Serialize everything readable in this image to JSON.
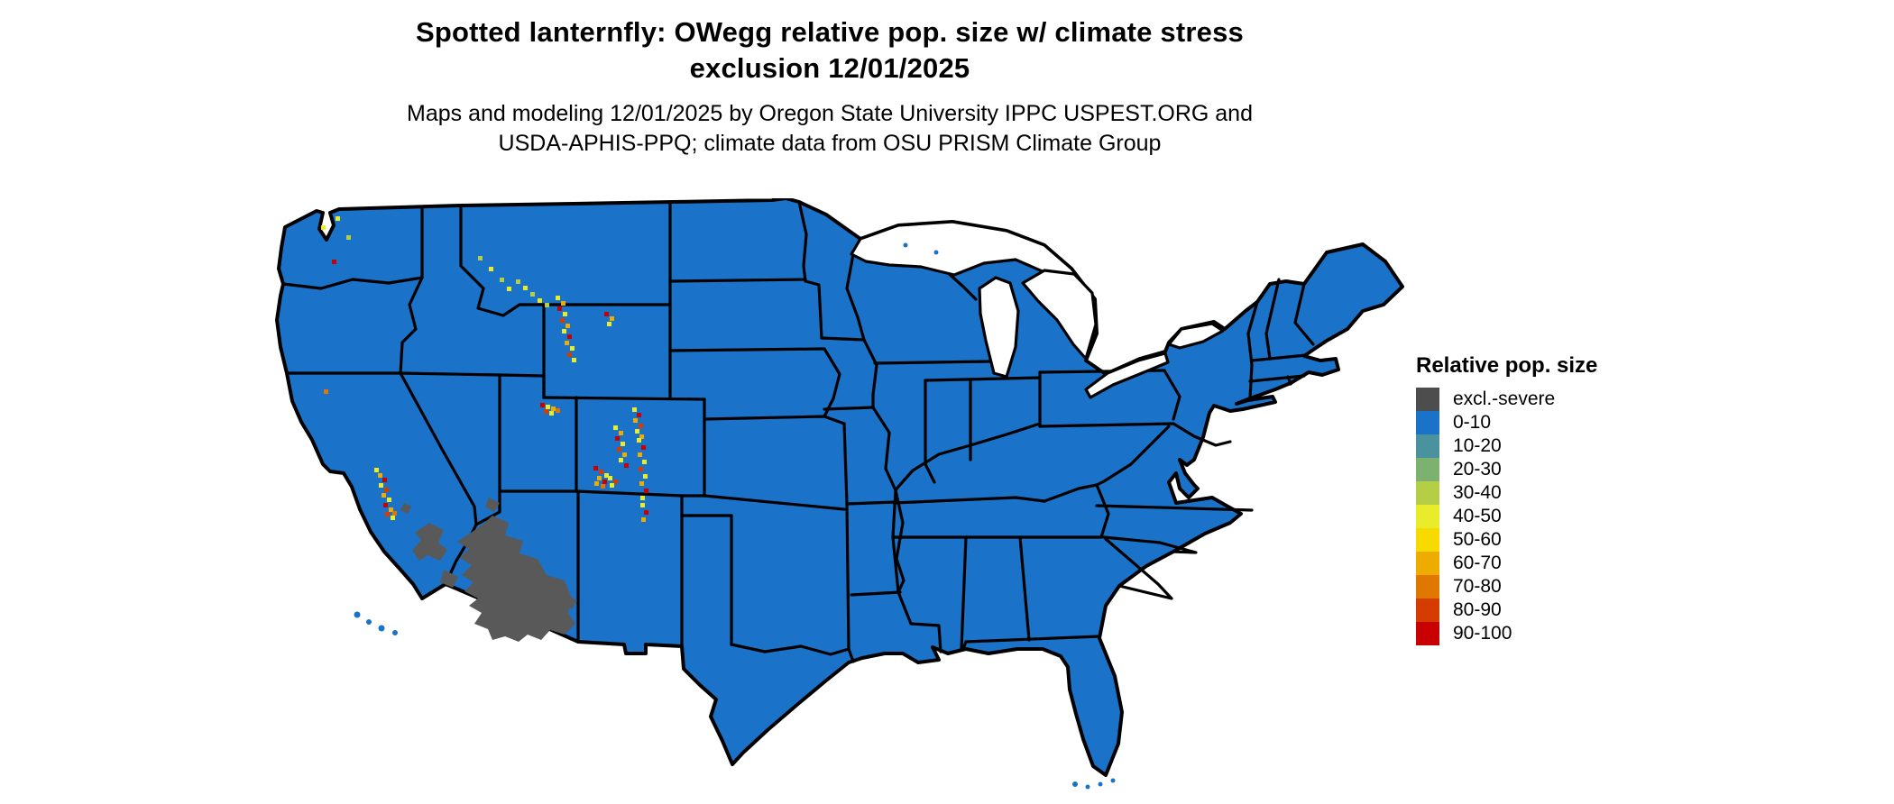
{
  "title": {
    "line1": "Spotted lanternfly: OWegg relative pop. size w/ climate stress",
    "line2": "exclusion 12/01/2025"
  },
  "subtitle": {
    "line1": "Maps and modeling 12/01/2025 by Oregon State University IPPC USPEST.ORG and",
    "line2": "USDA-APHIS-PPQ; climate data from OSU PRISM Climate Group"
  },
  "legend": {
    "title": "Relative pop. size",
    "items": [
      {
        "label": "excl.-severe",
        "color": "#4d4d4d"
      },
      {
        "label": "0-10",
        "color": "#1b72c9"
      },
      {
        "label": "10-20",
        "color": "#4a939e"
      },
      {
        "label": "20-30",
        "color": "#7cb170"
      },
      {
        "label": "30-40",
        "color": "#b4cf45"
      },
      {
        "label": "40-50",
        "color": "#e8ec2a"
      },
      {
        "label": "50-60",
        "color": "#f7da00"
      },
      {
        "label": "60-70",
        "color": "#eeab00"
      },
      {
        "label": "70-80",
        "color": "#e07800"
      },
      {
        "label": "80-90",
        "color": "#d43c00"
      },
      {
        "label": "90-100",
        "color": "#c90000"
      }
    ]
  },
  "map": {
    "description": "Contiguous United States choropleth grid",
    "background_color": "#ffffff",
    "border_color": "#000000",
    "lake_color": "#ffffff",
    "base_category": "0-10",
    "base_color": "#1b72c9",
    "exclusion_category": "excl.-severe",
    "exclusion_map_color": "#595959",
    "exclusion_regions": [
      {
        "name": "arizona-highlands"
      },
      {
        "name": "southeast-california-mountains"
      },
      {
        "name": "arizona-mexico-border-uplands"
      }
    ],
    "color_codes": {
      "LG": "#b4cf45",
      "Y": "#e8ec2a",
      "G": "#f7da00",
      "O": "#eeab00",
      "D": "#e07800",
      "R": "#d43c00",
      "K": "#c90000"
    },
    "hotspots": [
      {
        "name": "washington-cascades",
        "dots": [
          [
            72,
            68,
            "K"
          ],
          [
            76,
            20,
            "Y"
          ],
          [
            88,
            41,
            "LG"
          ],
          [
            60,
            30,
            "Y"
          ]
        ]
      },
      {
        "name": "northern-california",
        "dots": [
          [
            63,
            212,
            "D"
          ]
        ]
      },
      {
        "name": "sierra-nevada-california",
        "dots": [
          [
            119,
            299,
            "Y"
          ],
          [
            123,
            305,
            "O"
          ],
          [
            128,
            310,
            "K"
          ],
          [
            124,
            316,
            "Y"
          ],
          [
            130,
            321,
            "R"
          ],
          [
            127,
            327,
            "O"
          ],
          [
            133,
            332,
            "Y"
          ],
          [
            129,
            338,
            "K"
          ],
          [
            135,
            343,
            "O"
          ],
          [
            131,
            348,
            "R"
          ],
          [
            137,
            352,
            "Y"
          ],
          [
            139,
            347,
            "D"
          ]
        ]
      },
      {
        "name": "idaho-montana-rockies",
        "dots": [
          [
            234,
            64,
            "LG"
          ],
          [
            246,
            76,
            "Y"
          ],
          [
            258,
            88,
            "LG"
          ],
          [
            266,
            98,
            "Y"
          ]
        ]
      },
      {
        "name": "yellowstone-absaroka",
        "dots": [
          [
            276,
            90,
            "LG"
          ],
          [
            284,
            97,
            "Y"
          ],
          [
            292,
            104,
            "LG"
          ],
          [
            300,
            111,
            "Y"
          ],
          [
            308,
            116,
            "LG"
          ]
        ]
      },
      {
        "name": "wind-river-range-wyoming",
        "dots": [
          [
            320,
            108,
            "Y"
          ],
          [
            326,
            114,
            "O"
          ],
          [
            322,
            120,
            "K"
          ],
          [
            328,
            126,
            "Y"
          ],
          [
            325,
            133,
            "R"
          ],
          [
            331,
            139,
            "O"
          ],
          [
            327,
            145,
            "Y"
          ],
          [
            333,
            151,
            "K"
          ],
          [
            330,
            158,
            "O"
          ],
          [
            336,
            164,
            "Y"
          ],
          [
            333,
            171,
            "R"
          ],
          [
            338,
            177,
            "Y"
          ]
        ]
      },
      {
        "name": "bighorn-mountains-wyoming",
        "dots": [
          [
            374,
            126,
            "K"
          ],
          [
            380,
            131,
            "O"
          ],
          [
            377,
            137,
            "Y"
          ]
        ]
      },
      {
        "name": "wasatch-range-utah",
        "dots": [
          [
            303,
            227,
            "K"
          ],
          [
            309,
            229,
            "Y"
          ],
          [
            315,
            231,
            "O"
          ],
          [
            307,
            234,
            "R"
          ],
          [
            313,
            236,
            "Y"
          ],
          [
            320,
            233,
            "D"
          ]
        ]
      },
      {
        "name": "colorado-front-range",
        "dots": [
          [
            405,
            232,
            "Y"
          ],
          [
            410,
            238,
            "K"
          ],
          [
            406,
            244,
            "O"
          ],
          [
            412,
            250,
            "R"
          ],
          [
            408,
            256,
            "Y"
          ],
          [
            413,
            262,
            "O"
          ]
        ]
      },
      {
        "name": "colorado-central-rockies",
        "dots": [
          [
            384,
            252,
            "Y"
          ],
          [
            390,
            258,
            "O"
          ],
          [
            386,
            264,
            "K"
          ],
          [
            392,
            270,
            "Y"
          ],
          [
            388,
            276,
            "R"
          ],
          [
            394,
            282,
            "O"
          ],
          [
            390,
            288,
            "Y"
          ],
          [
            396,
            294,
            "K"
          ]
        ]
      },
      {
        "name": "san-juan-mountains-colorado",
        "dots": [
          [
            362,
            297,
            "K"
          ],
          [
            368,
            301,
            "R"
          ],
          [
            374,
            305,
            "Y"
          ],
          [
            366,
            308,
            "O"
          ],
          [
            372,
            312,
            "K"
          ],
          [
            378,
            308,
            "Y"
          ],
          [
            384,
            312,
            "R"
          ],
          [
            363,
            314,
            "O"
          ],
          [
            380,
            316,
            "Y"
          ],
          [
            370,
            317,
            "D"
          ]
        ]
      },
      {
        "name": "sangre-de-cristo-colorado",
        "dots": [
          [
            410,
            266,
            "Y"
          ],
          [
            415,
            274,
            "K"
          ],
          [
            411,
            282,
            "O"
          ],
          [
            416,
            290,
            "Y"
          ],
          [
            412,
            298,
            "R"
          ],
          [
            417,
            306,
            "Y"
          ],
          [
            413,
            314,
            "O"
          ],
          [
            418,
            322,
            "K"
          ],
          [
            414,
            330,
            "Y"
          ]
        ]
      },
      {
        "name": "sangre-de-cristo-new-mexico",
        "dots": [
          [
            414,
            338,
            "Y"
          ],
          [
            418,
            346,
            "K"
          ],
          [
            415,
            354,
            "O"
          ]
        ]
      }
    ]
  }
}
